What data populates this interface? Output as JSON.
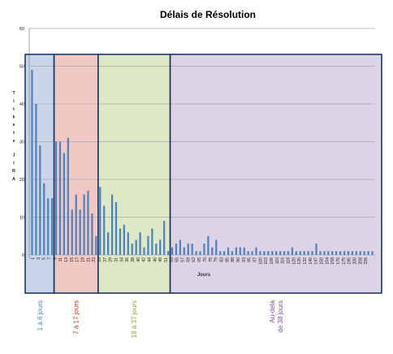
{
  "chart_data": {
    "type": "bar",
    "title": "Délais de Résolution",
    "xlabel": "Jours",
    "ylabel": "Tickets JIRA",
    "ylim": [
      0,
      60
    ],
    "yticks": [
      0,
      10,
      20,
      30,
      40,
      50,
      60
    ],
    "grid": true,
    "bar_color": "#4f81bd",
    "categories": [
      "1",
      "2",
      "3",
      "4",
      "5",
      "6",
      "7",
      "8",
      "9",
      "10",
      "11",
      "12",
      "13",
      "14",
      "15",
      "16",
      "17",
      "18",
      "19",
      "20",
      "21",
      "22",
      "23",
      "24",
      "25",
      "26",
      "27",
      "28",
      "29",
      "30",
      "31",
      "32",
      "33",
      "34",
      "35",
      "36",
      "38",
      "40",
      "42",
      "44",
      "45",
      "46",
      "49",
      "50",
      "51",
      "52",
      "53",
      "55",
      "57",
      "59",
      "62",
      "65",
      "70",
      "75",
      "79",
      "80",
      "83",
      "85",
      "88",
      "90",
      "93",
      "95",
      "97",
      "100",
      "103",
      "106",
      "110",
      "116",
      "118",
      "120",
      "124",
      "126",
      "130",
      "132",
      "140",
      "147",
      "150",
      "154",
      "158",
      "170",
      "175",
      "195",
      "200",
      "208",
      "226",
      "240"
    ],
    "values": [
      49,
      40,
      29,
      19,
      15,
      15,
      30,
      30,
      27,
      31,
      12,
      16,
      12,
      16,
      17,
      11,
      5,
      18,
      13,
      6,
      16,
      14,
      7,
      8,
      6,
      3,
      4,
      6,
      2,
      5,
      7,
      3,
      4,
      9,
      1,
      2,
      3,
      4,
      2,
      3,
      3,
      1,
      1,
      3,
      5,
      2,
      4,
      1,
      1,
      2,
      1,
      2,
      2,
      2,
      1,
      1,
      2,
      1,
      1,
      1,
      1,
      1,
      1,
      1,
      1,
      2,
      1,
      1,
      1,
      1,
      1,
      3,
      1,
      1,
      1,
      1,
      1,
      1,
      1,
      1,
      1,
      1,
      1,
      1,
      1,
      1
    ],
    "xtick_labels": [
      "1",
      "3",
      "5",
      "7",
      "9",
      "11",
      "13",
      "15",
      "17",
      "19",
      "21",
      "23",
      "25",
      "27",
      "29",
      "31",
      "34",
      "36",
      "38",
      "40",
      "42",
      "44",
      "46",
      "49",
      "51",
      "53",
      "55",
      "57",
      "59",
      "62",
      "65",
      "70",
      "75",
      "79",
      "83",
      "85",
      "88",
      "90",
      "93",
      "95",
      "97",
      "100",
      "103",
      "106",
      "110",
      "116",
      "118",
      "120",
      "126",
      "132",
      "140",
      "147",
      "150",
      "154",
      "158",
      "170",
      "175",
      "195",
      "200",
      "208",
      "226",
      "240"
    ],
    "visible_xticks": [
      "1",
      "3",
      "5",
      "7",
      "9",
      "11",
      "13",
      "15",
      "17",
      "19",
      "21",
      "23",
      "25",
      "27",
      "29",
      "31",
      "34",
      "36",
      "38",
      "40",
      "42",
      "44",
      "46",
      "49",
      "51",
      "53",
      "55",
      "57",
      "59",
      "62",
      "65",
      "70",
      "75",
      "79",
      "83",
      "85",
      "88",
      "90",
      "93",
      "95",
      "97",
      "100",
      "103",
      "106",
      "110",
      "116",
      "118",
      "120",
      "126",
      "132",
      "140",
      "147",
      "150",
      "154",
      "158",
      "170",
      "175",
      "195",
      "200",
      "208",
      "226"
    ],
    "regions": [
      {
        "label": "1 à 6 jours",
        "color": "#4f81bd",
        "fill": "#c9d6ea",
        "from": 0,
        "to": 6
      },
      {
        "label": "7 à 17 jours",
        "color": "#c0392b",
        "fill": "#f0c9c5",
        "from": 6,
        "to": 17
      },
      {
        "label": "18 à 37 jours",
        "color": "#7fae2a",
        "fill": "#dde9c6",
        "from": 17,
        "to": 35
      },
      {
        "label": "Au-delà de 38 jours",
        "color": "#7b4f9d",
        "fill": "#dcd3e6",
        "from": 35,
        "to": 86
      }
    ]
  }
}
